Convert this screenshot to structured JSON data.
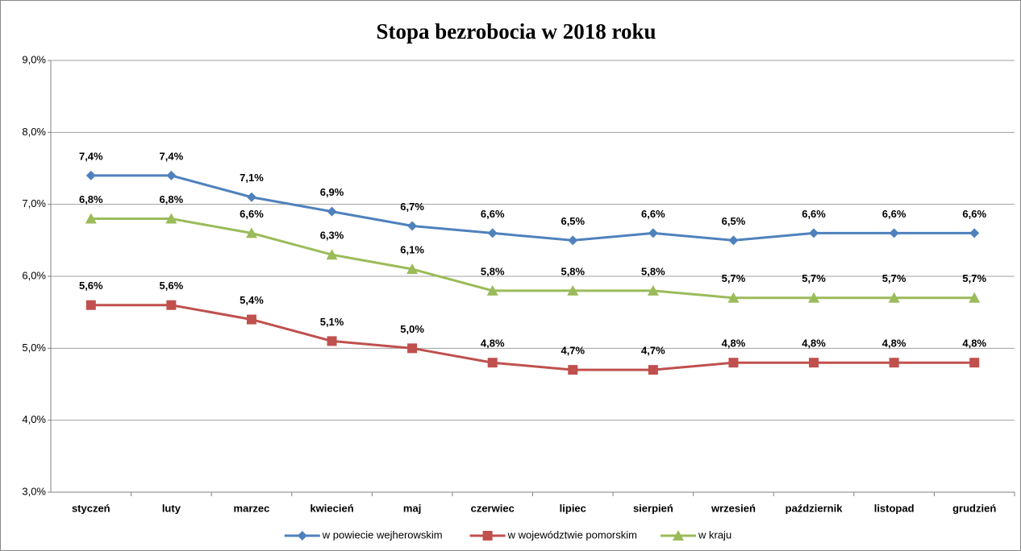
{
  "chart_data": {
    "type": "line",
    "title": "Stopa bezrobocia  w 2018 roku",
    "categories": [
      "styczeń",
      "luty",
      "marzec",
      "kwiecień",
      "maj",
      "czerwiec",
      "lipiec",
      "sierpień",
      "wrzesień",
      "październik",
      "listopad",
      "grudzień"
    ],
    "series": [
      {
        "name": "w powiecie wejherowskim",
        "color": "#4f81bd",
        "marker": "diamond",
        "values": [
          7.4,
          7.4,
          7.1,
          6.9,
          6.7,
          6.6,
          6.5,
          6.6,
          6.5,
          6.6,
          6.6,
          6.6
        ],
        "value_labels": [
          "7,4%",
          "7,4%",
          "7,1%",
          "6,9%",
          "6,7%",
          "6,6%",
          "6,5%",
          "6,6%",
          "6,5%",
          "6,6%",
          "6,6%",
          "6,6%"
        ]
      },
      {
        "name": "w województwie pomorskim",
        "color": "#c0504d",
        "marker": "square",
        "values": [
          5.6,
          5.6,
          5.4,
          5.1,
          5.0,
          4.8,
          4.7,
          4.7,
          4.8,
          4.8,
          4.8,
          4.8
        ],
        "value_labels": [
          "5,6%",
          "5,6%",
          "5,4%",
          "5,1%",
          "5,0%",
          "4,8%",
          "4,7%",
          "4,7%",
          "4,8%",
          "4,8%",
          "4,8%",
          "4,8%"
        ]
      },
      {
        "name": "w kraju",
        "color": "#9bbb59",
        "marker": "triangle",
        "values": [
          6.8,
          6.8,
          6.6,
          6.3,
          6.1,
          5.8,
          5.8,
          5.8,
          5.7,
          5.7,
          5.7,
          5.7
        ],
        "value_labels": [
          "6,8%",
          "6,8%",
          "6,6%",
          "6,3%",
          "6,1%",
          "5,8%",
          "5,8%",
          "5,8%",
          "5,7%",
          "5,7%",
          "5,7%",
          "5,7%"
        ]
      }
    ],
    "ylim": [
      3,
      9
    ],
    "yticks": [
      {
        "value": 3,
        "label": "3,0%"
      },
      {
        "value": 4,
        "label": "4,0%"
      },
      {
        "value": 5,
        "label": "5,0%"
      },
      {
        "value": 6,
        "label": "6,0%"
      },
      {
        "value": 7,
        "label": "7,0%"
      },
      {
        "value": 8,
        "label": "8,0%"
      },
      {
        "value": 9,
        "label": "9,0%"
      }
    ],
    "grid": true,
    "legend": "bottom"
  }
}
